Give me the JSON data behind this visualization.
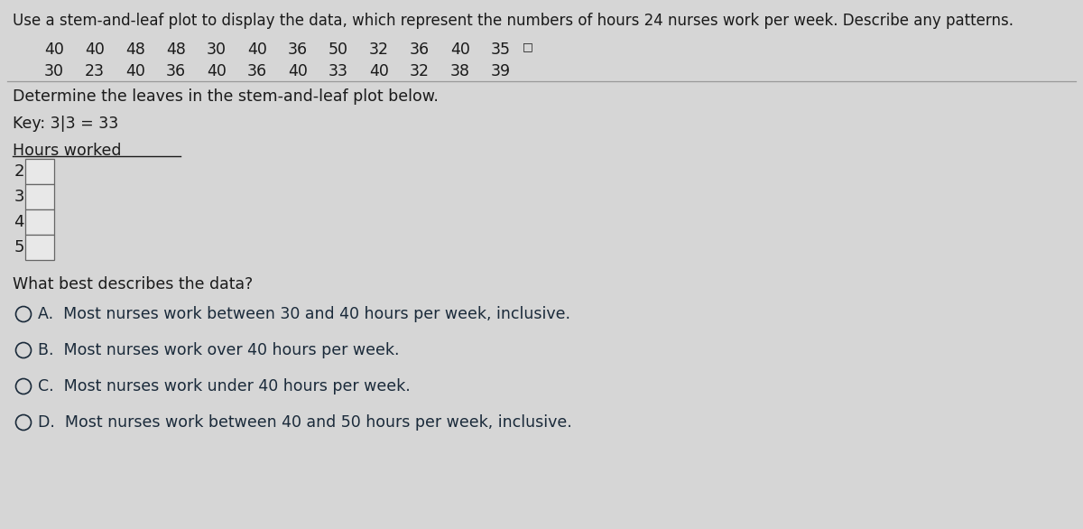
{
  "title": "Use a stem-and-leaf plot to display the data, which represent the numbers of hours 24 nurses work per week. Describe any patterns.",
  "data_row1": [
    40,
    40,
    48,
    48,
    30,
    40,
    36,
    50,
    32,
    36,
    40,
    35
  ],
  "data_row2": [
    30,
    23,
    40,
    36,
    40,
    36,
    40,
    33,
    40,
    32,
    38,
    39
  ],
  "subtitle": "Determine the leaves in the stem-and-leaf plot below.",
  "key_text": "Key: 3|3 = 33",
  "col_header": "Hours worked",
  "stems": [
    "2",
    "3",
    "4",
    "5"
  ],
  "question": "What best describes the data?",
  "options": [
    "A.  Most nurses work between 30 and 40 hours per week, inclusive.",
    "B.  Most nurses work over 40 hours per week.",
    "C.  Most nurses work under 40 hours per week.",
    "D.  Most nurses work between 40 and 50 hours per week, inclusive."
  ],
  "bg_color": "#d6d6d6",
  "text_color": "#1a1a1a",
  "option_text_color": "#1a2a3a",
  "box_color": "#e8e8e8",
  "box_edge": "#666666",
  "divider_color": "#999999"
}
